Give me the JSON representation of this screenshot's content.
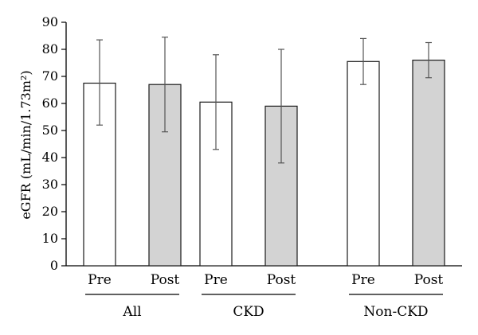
{
  "chart_data": {
    "type": "bar",
    "ylabel": "eGFR (mL/min/1.73m²)",
    "ylim": [
      0,
      90
    ],
    "yticks": [
      0,
      10,
      20,
      30,
      40,
      50,
      60,
      70,
      80,
      90
    ],
    "grid": false,
    "groups": [
      {
        "label": "All",
        "bars": [
          {
            "label": "Pre",
            "value": 67.5,
            "err_low": 52,
            "err_high": 83.5
          },
          {
            "label": "Post",
            "value": 67,
            "err_low": 49.5,
            "err_high": 84.5
          }
        ]
      },
      {
        "label": "CKD",
        "bars": [
          {
            "label": "Pre",
            "value": 60.5,
            "err_low": 43,
            "err_high": 78
          },
          {
            "label": "Post",
            "value": 59,
            "err_low": 38,
            "err_high": 80
          }
        ]
      },
      {
        "label": "Non-CKD",
        "bars": [
          {
            "label": "Pre",
            "value": 75.5,
            "err_low": 67,
            "err_high": 84
          },
          {
            "label": "Post",
            "value": 76,
            "err_low": 69.5,
            "err_high": 82.5
          }
        ]
      }
    ],
    "colors": {
      "Pre": "#ffffff",
      "Post": "#d3d3d3",
      "stroke": "#1a1a1a",
      "errorbar": "#555555"
    }
  }
}
